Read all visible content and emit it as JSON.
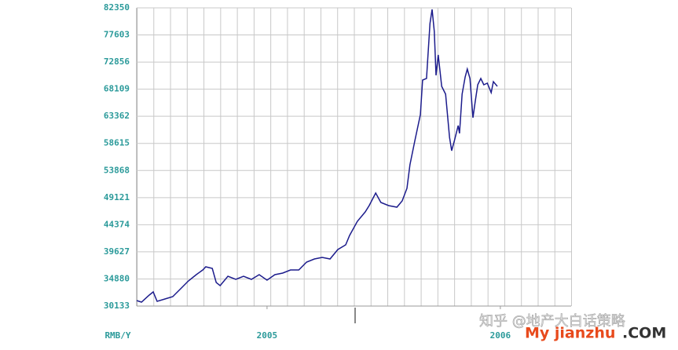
{
  "chart_data": {
    "type": "line",
    "ylabel": "RMB/Y",
    "annotations": [
      "知乎 @地产大白话策略",
      "My jianzhu",
      ".COM"
    ],
    "xlim": [
      0,
      100
    ],
    "xticks": [
      {
        "value": 30,
        "label": "2005"
      },
      {
        "value": 83.7,
        "label": "2006"
      }
    ],
    "ylim": [
      30133,
      82350
    ],
    "yticks": [
      30133,
      34880,
      39627,
      44374,
      49121,
      53868,
      58615,
      63362,
      68109,
      72856,
      77603,
      82350
    ],
    "grid": true,
    "x": [
      0,
      1.1,
      2.9,
      3.8,
      4.7,
      6.5,
      8.3,
      10.1,
      11.9,
      13.7,
      15.2,
      15.9,
      17.4,
      18.3,
      19.2,
      21.0,
      22.8,
      24.6,
      26.4,
      28.2,
      30.0,
      31.8,
      33.6,
      35.4,
      37.3,
      39.1,
      40.9,
      42.7,
      44.5,
      46.3,
      48.1,
      49.0,
      50.8,
      52.6,
      53.5,
      55.0,
      56.2,
      58.0,
      59.9,
      61.1,
      62.2,
      62.9,
      64.0,
      65.3,
      65.8,
      66.7,
      67.5,
      68.0,
      68.5,
      68.9,
      69.4,
      70.2,
      71.1,
      72.0,
      72.5,
      73.1,
      74.0,
      74.3,
      74.9,
      75.6,
      76.1,
      76.7,
      77.4,
      77.9,
      78.5,
      79.2,
      79.9,
      80.7,
      81.6,
      82.1,
      83.0
    ],
    "series": [
      {
        "color": "#1c1c8c",
        "values": [
          31095,
          30820,
          32057,
          32606,
          30957,
          31370,
          31782,
          33156,
          34530,
          35629,
          36454,
          37004,
          36729,
          34255,
          33706,
          35355,
          34805,
          35355,
          34805,
          35629,
          34668,
          35629,
          35904,
          36454,
          36454,
          37828,
          38378,
          38652,
          38378,
          40027,
          40851,
          42500,
          44973,
          46622,
          47721,
          49920,
          48271,
          47721,
          47447,
          48546,
          50745,
          54867,
          58989,
          63661,
          69707,
          69982,
          79601,
          82074,
          78227,
          70532,
          74104,
          68608,
          67234,
          59676,
          57340,
          58989,
          61737,
          60363,
          67234,
          70257,
          71631,
          69982,
          63111,
          65860,
          68883,
          69982,
          68883,
          69157,
          67509,
          69432,
          68608
        ]
      }
    ]
  }
}
